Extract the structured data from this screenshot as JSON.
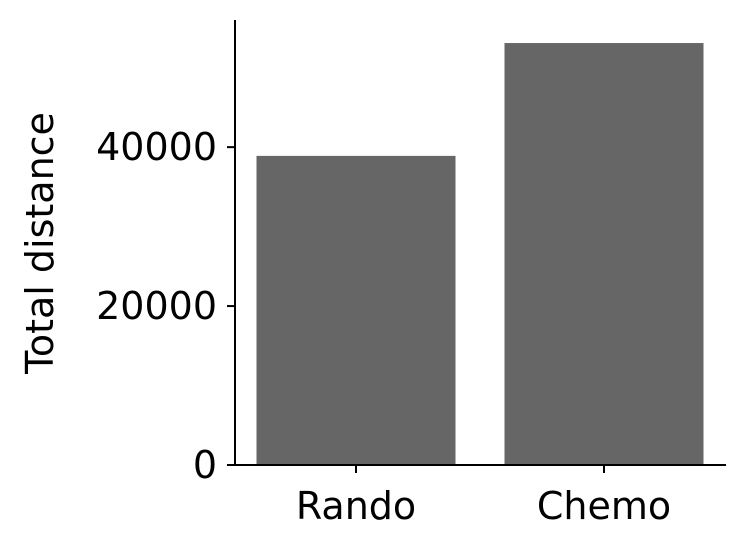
{
  "chart_data": {
    "type": "bar",
    "title": "",
    "xlabel": "",
    "ylabel": "Total distance",
    "categories": [
      "Rando",
      "Chemo"
    ],
    "values": [
      38900,
      53100
    ],
    "ylim": [
      0,
      56000
    ],
    "yticks": [
      0,
      20000,
      40000
    ],
    "ytick_labels": [
      "0",
      "20000",
      "40000"
    ],
    "bar_color": "#666666",
    "grid": false,
    "legend": "none"
  }
}
